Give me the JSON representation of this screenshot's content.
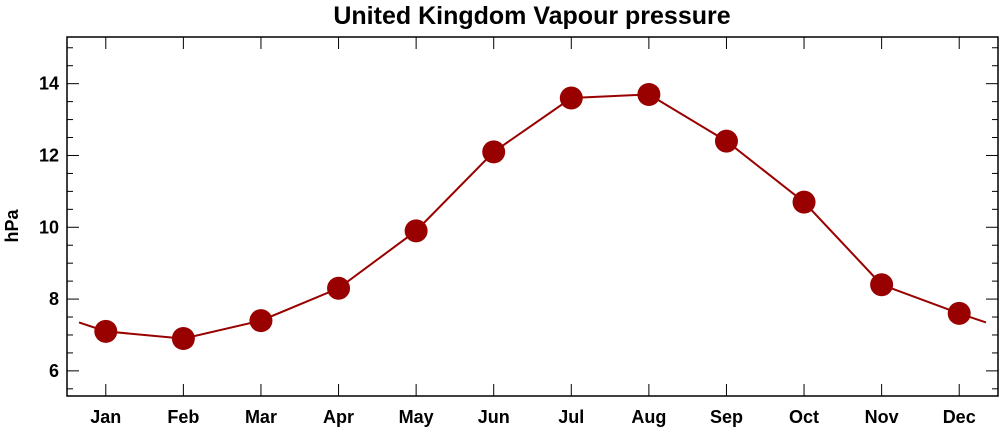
{
  "chart_data": {
    "type": "line",
    "title": "United Kingdom Vapour pressure",
    "xlabel": "",
    "ylabel": "hPa",
    "categories": [
      "Jan",
      "Feb",
      "Mar",
      "Apr",
      "May",
      "Jun",
      "Jul",
      "Aug",
      "Sep",
      "Oct",
      "Nov",
      "Dec"
    ],
    "series": [
      {
        "values": [
          7.1,
          6.9,
          7.4,
          8.3,
          9.9,
          12.1,
          13.6,
          13.7,
          12.4,
          10.7,
          8.4,
          7.6
        ]
      }
    ],
    "ylim": [
      5.3,
      15.3
    ],
    "yticks": [
      6,
      8,
      10,
      12,
      14
    ],
    "grid": false,
    "colors": {
      "series": "#990000",
      "axis": "#000000"
    }
  }
}
